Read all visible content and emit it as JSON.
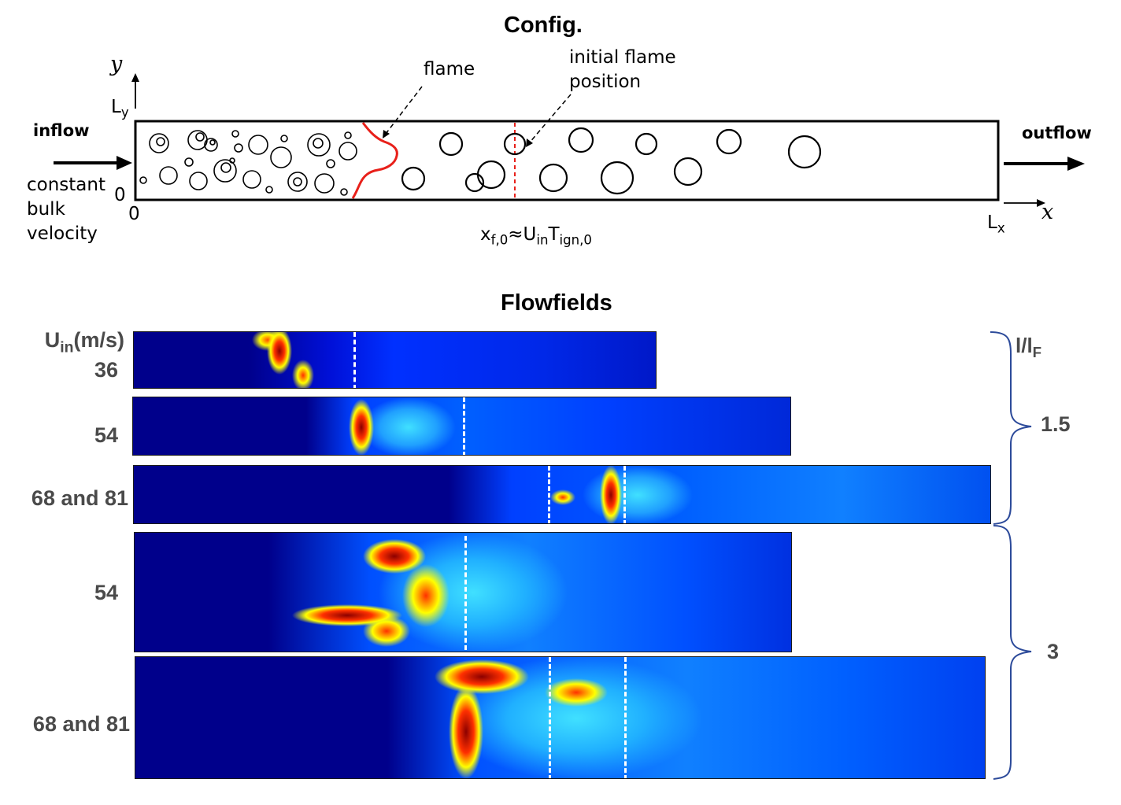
{
  "config": {
    "title": "Config.",
    "axis_y": "y",
    "axis_x": "x",
    "ly": "L",
    "ly_sub": "y",
    "lx": "L",
    "lx_sub": "x",
    "y_zero": "0",
    "x_zero": "0",
    "inflow": "inflow",
    "outflow": "outflow",
    "inflow_desc": [
      "constant",
      "bulk",
      "velocity"
    ],
    "flame_label": "flame",
    "initial_flame_label": [
      "initial flame",
      "position"
    ],
    "xf0_label": {
      "x": "x",
      "x_sub": "f,0",
      "approx": "≈U",
      "u_sub": "in",
      "t": "T",
      "t_sub": "ign,0"
    },
    "colors": {
      "flame": "#e8201a",
      "initial_position": "#e8201a"
    }
  },
  "flowfields": {
    "title": "Flowfields",
    "uin_header": "U",
    "uin_sub": "in",
    "uin_unit": "(m/s)",
    "ratio_header": "l/l",
    "ratio_sub": "F",
    "rows": [
      {
        "uin": "36",
        "ratio_group": "1.5"
      },
      {
        "uin": "54",
        "ratio_group": "1.5"
      },
      {
        "uin": "68 and 81",
        "ratio_group": "1.5"
      },
      {
        "uin": "54",
        "ratio_group": "3"
      },
      {
        "uin": "68 and 81",
        "ratio_group": "3"
      }
    ],
    "groups": [
      {
        "label": "1.5"
      },
      {
        "label": "3"
      }
    ],
    "colormap": [
      "#00008b",
      "#0040ff",
      "#00c8ff",
      "#ffff00",
      "#ff3000",
      "#8b0000"
    ]
  }
}
